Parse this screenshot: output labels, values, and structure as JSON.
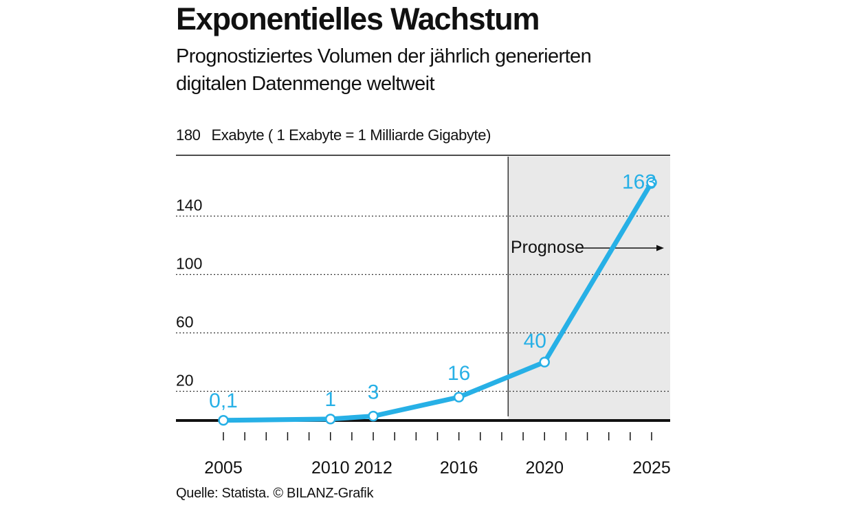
{
  "chart_data": {
    "type": "line",
    "title": "Exponentielles Wachstum",
    "subtitle": "Prognostiziertes Volumen der jährlich generierten digitalen Datenmenge weltweit",
    "ylabel": "Exabyte ( 1 Exabyte = 1 Milliarde Gigabyte)",
    "ylim": [
      0,
      180
    ],
    "yticks": [
      20,
      60,
      100,
      140,
      180
    ],
    "ytick_labels": [
      "20",
      "60",
      "100",
      "140",
      "180"
    ],
    "xlim": [
      2005,
      2025
    ],
    "x": [
      2005,
      2010,
      2012,
      2016,
      2020,
      2025
    ],
    "x_tick_labels": [
      "2005",
      "2010",
      "2012",
      "2016",
      "2020",
      "2025"
    ],
    "values": [
      0.1,
      1,
      3,
      16,
      40,
      163
    ],
    "data_labels": [
      "0,1",
      "1",
      "3",
      "16",
      "40",
      "163"
    ],
    "forecast_label": "Prognose",
    "forecast_start": 2018.3,
    "grid": "dotted horizontal",
    "series_color": "#27b0e6",
    "forecast_shade_color": "#e9e9e9",
    "source": "Quelle: Statista. © BILANZ-Grafik"
  }
}
